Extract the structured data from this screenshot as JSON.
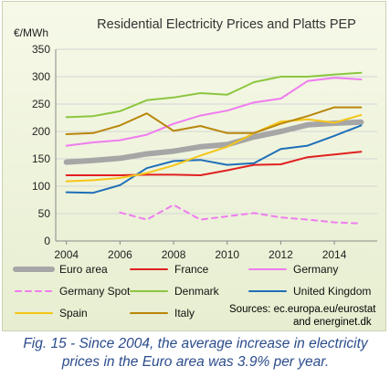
{
  "chart_data": {
    "type": "line",
    "title": "Residential Electricity Prices and Platts PEP",
    "ylabel": "€/MWh",
    "xlabel": "",
    "ylim": [
      0,
      350
    ],
    "xlim": [
      2003.6,
      2015.6
    ],
    "y_ticks": [
      0,
      50,
      100,
      150,
      200,
      250,
      300,
      350
    ],
    "x_ticks": [
      2004,
      2006,
      2008,
      2010,
      2012,
      2014
    ],
    "grid": true,
    "legend_position": "bottom",
    "source": [
      "Sources: ec.europa.eu/eurostat",
      "and energinet.dk"
    ],
    "series": [
      {
        "name": "Euro area",
        "color": "#a6a6a6",
        "style": "thick",
        "x": [
          2004,
          2005,
          2006,
          2007,
          2008,
          2009,
          2010,
          2011,
          2012,
          2013,
          2014,
          2015
        ],
        "y": [
          144,
          147,
          151,
          159,
          164,
          172,
          176,
          190,
          200,
          212,
          215,
          217
        ]
      },
      {
        "name": "France",
        "color": "#e02020",
        "style": "solid",
        "x": [
          2004,
          2005,
          2006,
          2007,
          2008,
          2009,
          2010,
          2011,
          2012,
          2013,
          2014,
          2015
        ],
        "y": [
          120,
          120,
          120,
          121,
          121,
          120,
          129,
          139,
          140,
          153,
          158,
          163
        ]
      },
      {
        "name": "Germany",
        "color": "#ef7cef",
        "style": "solid",
        "x": [
          2004,
          2005,
          2006,
          2007,
          2008,
          2009,
          2010,
          2011,
          2012,
          2013,
          2014,
          2015
        ],
        "y": [
          174,
          180,
          184,
          194,
          214,
          229,
          238,
          253,
          260,
          292,
          298,
          295
        ]
      },
      {
        "name": "Germany Spot",
        "color": "#ef7cef",
        "style": "dashed",
        "x": [
          2006,
          2007,
          2008,
          2009,
          2010,
          2011,
          2012,
          2013,
          2014,
          2015
        ],
        "y": [
          52,
          39,
          66,
          39,
          45,
          51,
          43,
          39,
          34,
          32
        ]
      },
      {
        "name": "Denmark",
        "color": "#8cc63f",
        "style": "solid",
        "x": [
          2004,
          2005,
          2006,
          2007,
          2008,
          2009,
          2010,
          2011,
          2012,
          2013,
          2014,
          2015
        ],
        "y": [
          226,
          228,
          237,
          257,
          262,
          270,
          267,
          290,
          300,
          300,
          304,
          307
        ]
      },
      {
        "name": "United Kingdom",
        "color": "#1f6fb8",
        "style": "solid",
        "x": [
          2004,
          2005,
          2006,
          2007,
          2008,
          2009,
          2010,
          2011,
          2012,
          2013,
          2014,
          2015
        ],
        "y": [
          89,
          88,
          102,
          133,
          146,
          148,
          139,
          142,
          168,
          174,
          192,
          211
        ]
      },
      {
        "name": "Spain",
        "color": "#f5c518",
        "style": "solid",
        "x": [
          2004,
          2005,
          2006,
          2007,
          2008,
          2009,
          2010,
          2011,
          2012,
          2013,
          2014,
          2015
        ],
        "y": [
          109,
          111,
          115,
          124,
          138,
          156,
          172,
          197,
          218,
          222,
          216,
          230
        ]
      },
      {
        "name": "Italy",
        "color": "#b8860b",
        "style": "solid",
        "x": [
          2004,
          2005,
          2006,
          2007,
          2008,
          2009,
          2010,
          2011,
          2012,
          2013,
          2014,
          2015
        ],
        "y": [
          195,
          197,
          211,
          233,
          201,
          210,
          197,
          197,
          214,
          228,
          244,
          244
        ]
      }
    ]
  },
  "caption": {
    "line1": "Fig. 15 - Since 2004, the average increase in electricity",
    "line2": "prices in the Euro area was 3.9% per year."
  }
}
